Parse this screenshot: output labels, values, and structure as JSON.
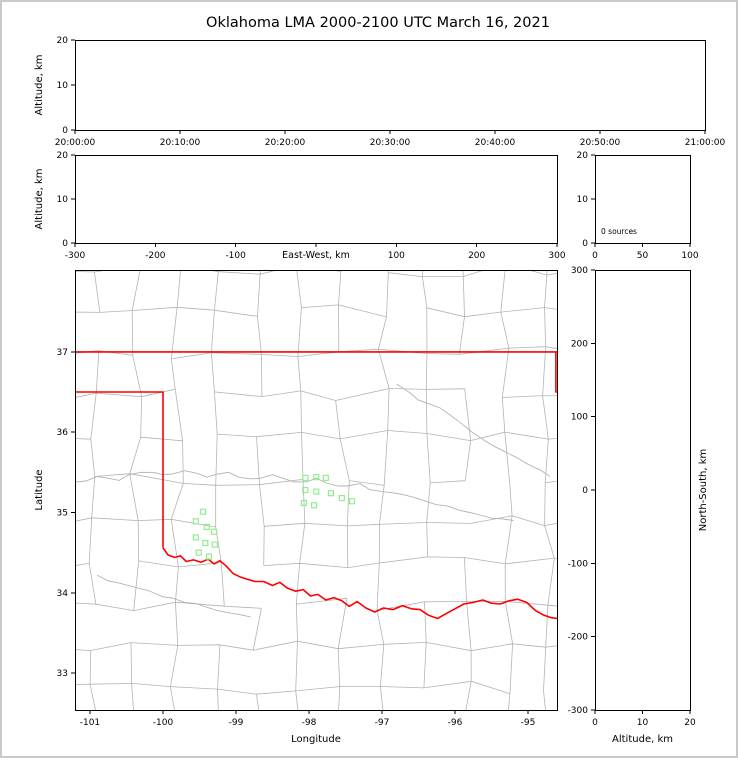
{
  "figure": {
    "title": "Oklahoma LMA 2000-2100 UTC March 16, 2021"
  },
  "colors": {
    "background": "#ffffff",
    "outer_border": "#c9c9c9",
    "axis": "#000000",
    "county": "#b3b3b3",
    "river": "#b3b3b3",
    "state_border": "#ff0000",
    "source_marker": "#90ee90"
  },
  "chart_data": [
    {
      "id": "time_height",
      "type": "scatter",
      "xlabel": "",
      "ylabel": "Altitude, km",
      "xlim": [
        0,
        6
      ],
      "xticks": [
        0,
        1,
        2,
        3,
        4,
        5,
        6
      ],
      "xtick_labels": [
        "20:00:00",
        "20:10:00",
        "20:20:00",
        "20:30:00",
        "20:40:00",
        "20:50:00",
        "21:00:00"
      ],
      "ylim": [
        0,
        20
      ],
      "yticks": [
        0,
        10,
        20
      ],
      "points": []
    },
    {
      "id": "ew_height",
      "type": "scatter",
      "xlabel": "East-West, km",
      "ylabel": "Altitude, km",
      "xlim": [
        -300,
        300
      ],
      "xticks": [
        -300,
        -200,
        -100,
        0,
        100,
        200,
        300
      ],
      "xtick_labels": [
        "-300",
        "-200",
        "-100",
        "",
        "100",
        "200",
        "300"
      ],
      "ylim": [
        0,
        20
      ],
      "yticks": [
        0,
        10,
        20
      ],
      "points": []
    },
    {
      "id": "alt_histogram",
      "type": "bar",
      "annotation": "0 sources",
      "xlim": [
        0,
        100
      ],
      "xticks": [
        0,
        50,
        100
      ],
      "ylim": [
        0,
        20
      ],
      "yticks": [
        0,
        10,
        20
      ],
      "values": []
    },
    {
      "id": "plan_view",
      "type": "scatter",
      "xlabel": "Longitude",
      "ylabel": "Latitude",
      "xlim": [
        -101.205,
        -94.603
      ],
      "xticks": [
        -101,
        -100,
        -99,
        -98,
        -97,
        -96,
        -95
      ],
      "ylim": [
        32.54,
        38.02
      ],
      "yticks": [
        33,
        34,
        35,
        36,
        37
      ],
      "points": [
        [
          -99.45,
          35.01
        ],
        [
          -99.55,
          34.89
        ],
        [
          -99.4,
          34.82
        ],
        [
          -99.3,
          34.76
        ],
        [
          -99.55,
          34.69
        ],
        [
          -99.42,
          34.62
        ],
        [
          -99.29,
          34.6
        ],
        [
          -99.51,
          34.5
        ],
        [
          -99.37,
          34.45
        ],
        [
          -98.05,
          35.43
        ],
        [
          -97.9,
          35.44
        ],
        [
          -97.77,
          35.43
        ],
        [
          -98.05,
          35.28
        ],
        [
          -97.9,
          35.26
        ],
        [
          -98.07,
          35.12
        ],
        [
          -97.93,
          35.09
        ],
        [
          -97.7,
          35.24
        ],
        [
          -97.55,
          35.18
        ],
        [
          -97.41,
          35.14
        ]
      ],
      "state_border": [
        [
          [
            -101.21,
            37.0
          ],
          [
            -94.6,
            37.0
          ]
        ],
        [
          [
            -101.21,
            36.5
          ],
          [
            -100.0,
            36.5
          ],
          [
            -100.0,
            34.56
          ]
        ],
        [
          [
            -94.618,
            37.0
          ],
          [
            -94.618,
            36.5
          ],
          [
            -94.6,
            36.5
          ]
        ],
        [
          [
            -100.0,
            34.56
          ],
          [
            -99.93,
            34.47
          ],
          [
            -99.84,
            34.44
          ],
          [
            -99.76,
            34.46
          ],
          [
            -99.68,
            34.39
          ],
          [
            -99.58,
            34.41
          ],
          [
            -99.48,
            34.38
          ],
          [
            -99.38,
            34.42
          ],
          [
            -99.3,
            34.36
          ],
          [
            -99.22,
            34.4
          ],
          [
            -99.13,
            34.33
          ],
          [
            -99.04,
            34.24
          ],
          [
            -98.95,
            34.2
          ],
          [
            -98.85,
            34.17
          ],
          [
            -98.74,
            34.14
          ],
          [
            -98.62,
            34.14
          ],
          [
            -98.5,
            34.09
          ],
          [
            -98.4,
            34.13
          ],
          [
            -98.3,
            34.06
          ],
          [
            -98.18,
            34.02
          ],
          [
            -98.08,
            34.04
          ],
          [
            -97.98,
            33.96
          ],
          [
            -97.88,
            33.98
          ],
          [
            -97.77,
            33.91
          ],
          [
            -97.66,
            33.94
          ],
          [
            -97.55,
            33.9
          ],
          [
            -97.45,
            33.83
          ],
          [
            -97.34,
            33.89
          ],
          [
            -97.22,
            33.81
          ],
          [
            -97.1,
            33.76
          ],
          [
            -96.98,
            33.81
          ],
          [
            -96.85,
            33.79
          ],
          [
            -96.72,
            33.84
          ],
          [
            -96.6,
            33.8
          ],
          [
            -96.48,
            33.79
          ],
          [
            -96.36,
            33.72
          ],
          [
            -96.24,
            33.68
          ],
          [
            -96.12,
            33.74
          ],
          [
            -96.0,
            33.8
          ],
          [
            -95.88,
            33.86
          ],
          [
            -95.75,
            33.88
          ],
          [
            -95.62,
            33.91
          ],
          [
            -95.5,
            33.87
          ],
          [
            -95.38,
            33.86
          ],
          [
            -95.26,
            33.9
          ],
          [
            -95.14,
            33.92
          ],
          [
            -95.02,
            33.88
          ],
          [
            -94.9,
            33.78
          ],
          [
            -94.78,
            33.72
          ],
          [
            -94.68,
            33.69
          ],
          [
            -94.6,
            33.68
          ]
        ]
      ],
      "rivers": [
        [
          [
            -101.2,
            35.38
          ],
          [
            -100.9,
            35.45
          ],
          [
            -100.6,
            35.4
          ],
          [
            -100.3,
            35.5
          ],
          [
            -100.0,
            35.47
          ],
          [
            -99.7,
            35.52
          ],
          [
            -99.4,
            35.44
          ],
          [
            -99.1,
            35.5
          ],
          [
            -98.8,
            35.42
          ],
          [
            -98.5,
            35.47
          ],
          [
            -98.2,
            35.38
          ],
          [
            -97.9,
            35.43
          ],
          [
            -97.6,
            35.33
          ],
          [
            -97.3,
            35.36
          ],
          [
            -97.0,
            35.26
          ],
          [
            -96.7,
            35.22
          ],
          [
            -96.4,
            35.14
          ],
          [
            -96.1,
            35.08
          ],
          [
            -95.8,
            35.0
          ],
          [
            -95.5,
            34.93
          ],
          [
            -95.2,
            34.9
          ]
        ],
        [
          [
            -100.9,
            34.22
          ],
          [
            -100.6,
            34.12
          ],
          [
            -100.3,
            34.05
          ],
          [
            -100.0,
            33.95
          ],
          [
            -99.7,
            33.88
          ],
          [
            -99.4,
            33.82
          ],
          [
            -99.1,
            33.75
          ],
          [
            -98.8,
            33.7
          ]
        ],
        [
          [
            -96.8,
            36.6
          ],
          [
            -96.5,
            36.4
          ],
          [
            -96.2,
            36.3
          ],
          [
            -95.9,
            36.1
          ],
          [
            -95.6,
            35.9
          ],
          [
            -95.3,
            35.75
          ],
          [
            -95.0,
            35.6
          ],
          [
            -94.7,
            35.45
          ]
        ]
      ]
    },
    {
      "id": "ns_height",
      "type": "scatter",
      "xlabel": "Altitude, km",
      "ylabel": "North-South, km",
      "xlim": [
        0,
        20
      ],
      "xticks": [
        0,
        10,
        20
      ],
      "ylim": [
        -300,
        300
      ],
      "yticks": [
        -300,
        -200,
        -100,
        0,
        100,
        200,
        300
      ],
      "points": []
    }
  ]
}
